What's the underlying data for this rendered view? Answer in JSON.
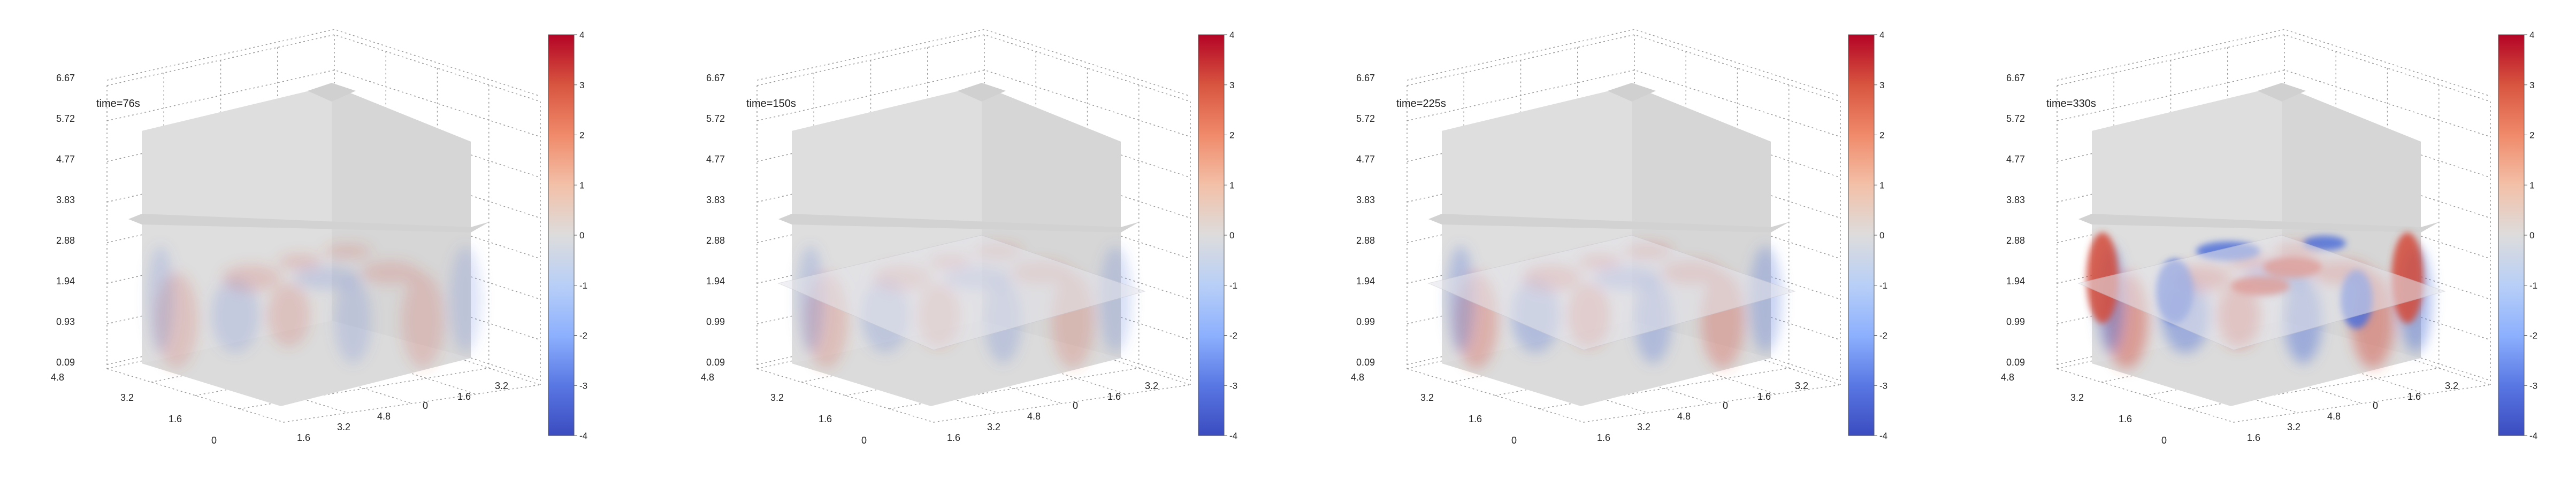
{
  "chart_data": [
    {
      "type": "heatmap",
      "title": "time=76s",
      "z_ticks": [
        "6.67",
        "5.72",
        "4.77",
        "3.83",
        "2.88",
        "1.94",
        "0.93",
        "0.09"
      ],
      "depth_ticks": [
        "4.8",
        "3.2",
        "1.6",
        "0"
      ],
      "x_ticks": [
        "1.6",
        "3.2",
        "4.8"
      ],
      "y_ticks": [
        "0",
        "1.6",
        "3.2"
      ],
      "right_ticks": [
        "4"
      ],
      "colorbar": {
        "min": -4,
        "max": 4,
        "ticks": [
          "4",
          "3",
          "2",
          "1",
          "0",
          "-1",
          "-2",
          "-3",
          "-4"
        ],
        "colormap": "coolwarm"
      },
      "field_intensity": 0.25,
      "horizontal_slice_visible": false
    },
    {
      "type": "heatmap",
      "title": "time=150s",
      "z_ticks": [
        "6.67",
        "5.72",
        "4.77",
        "3.83",
        "2.88",
        "1.94",
        "0.99",
        "0.09"
      ],
      "depth_ticks": [
        "4.8",
        "3.2",
        "1.6",
        "0"
      ],
      "x_ticks": [
        "1.6",
        "3.2",
        "4.8"
      ],
      "y_ticks": [
        "0",
        "1.6",
        "3.2"
      ],
      "right_ticks": [
        "4"
      ],
      "colorbar": {
        "min": -4,
        "max": 4,
        "ticks": [
          "4",
          "3",
          "2",
          "1",
          "0",
          "-1",
          "-2",
          "-3",
          "-4"
        ],
        "colormap": "coolwarm"
      },
      "field_intensity": 0.35,
      "horizontal_slice_visible": true
    },
    {
      "type": "heatmap",
      "title": "time=225s",
      "z_ticks": [
        "6.67",
        "5.72",
        "4.77",
        "3.83",
        "2.88",
        "1.94",
        "0.99",
        "0.09"
      ],
      "depth_ticks": [
        "4.8",
        "3.2",
        "1.6",
        "0"
      ],
      "x_ticks": [
        "1.6",
        "3.2",
        "4.8"
      ],
      "y_ticks": [
        "0",
        "1.6",
        "3.2"
      ],
      "right_ticks": [
        "4"
      ],
      "colorbar": {
        "min": -4,
        "max": 4,
        "ticks": [
          "4",
          "3",
          "2",
          "1",
          "0",
          "-1",
          "-2",
          "-3",
          "-4"
        ],
        "colormap": "coolwarm"
      },
      "field_intensity": 0.6,
      "horizontal_slice_visible": true
    },
    {
      "type": "heatmap",
      "title": "time=330s",
      "z_ticks": [
        "6.67",
        "5.72",
        "4.77",
        "3.83",
        "2.88",
        "1.94",
        "0.99",
        "0.09"
      ],
      "depth_ticks": [
        "4.8",
        "3.2",
        "1.6",
        "0"
      ],
      "x_ticks": [
        "1.6",
        "3.2",
        "4.8"
      ],
      "y_ticks": [
        "0",
        "1.6",
        "3.2"
      ],
      "right_ticks": [
        "4"
      ],
      "colorbar": {
        "min": -4,
        "max": 4,
        "ticks": [
          "4",
          "3",
          "2",
          "1",
          "0",
          "-1",
          "-2",
          "-3",
          "-4"
        ],
        "colormap": "coolwarm"
      },
      "field_intensity": 1.0,
      "horizontal_slice_visible": true
    }
  ]
}
